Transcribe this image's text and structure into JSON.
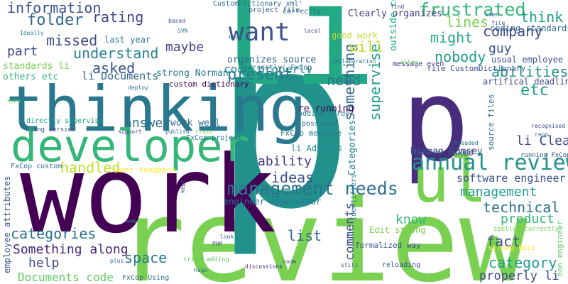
{
  "words": [
    {
      "text": "review",
      "color": "#7ad151"
    },
    {
      "text": "p",
      "color": "#21918c"
    },
    {
      "text": "li",
      "color": "#22a884"
    },
    {
      "text": "work",
      "color": "#440154"
    },
    {
      "text": "p",
      "color": "#472d7b"
    },
    {
      "text": "thinking",
      "color": "#2a788e"
    },
    {
      "text": "developer",
      "color": "#35b779"
    },
    {
      "text": "ul",
      "color": "#7ad151"
    },
    {
      "text": "want",
      "color": "#3b528b"
    },
    {
      "text": "management needs",
      "color": "#2c728e"
    },
    {
      "text": "annual review",
      "color": "#21918c"
    },
    {
      "text": "frustrated",
      "color": "#35b779"
    },
    {
      "text": "information",
      "color": "#3b528b"
    },
    {
      "text": "folder",
      "color": "#31688e"
    },
    {
      "text": "rating",
      "color": "#414487"
    },
    {
      "text": "present",
      "color": "#2a788e"
    },
    {
      "text": "think",
      "color": "#1f9e89"
    },
    {
      "text": "company",
      "color": "#3e4989"
    },
    {
      "text": "something",
      "color": "#31688e"
    },
    {
      "text": "supervise",
      "color": "#1f9e89"
    },
    {
      "text": "Clearly organizes",
      "color": "#443983"
    },
    {
      "text": "lines",
      "color": "#7ad151"
    },
    {
      "text": "missed",
      "color": "#3e4989"
    },
    {
      "text": "understand",
      "color": "#26828e"
    },
    {
      "text": "part",
      "color": "#3e4989"
    },
    {
      "text": "asked",
      "color": "#3b528b"
    },
    {
      "text": "maybe",
      "color": "#414487"
    },
    {
      "text": "will",
      "color": "#bddf26"
    },
    {
      "text": "might",
      "color": "#22a884"
    },
    {
      "text": "guy",
      "color": "#3b528b"
    },
    {
      "text": "nobody",
      "color": "#1f9e89"
    },
    {
      "text": "abilities",
      "color": "#21918c"
    },
    {
      "text": "etc",
      "color": "#1f9e89"
    },
    {
      "text": "li Clearly",
      "color": "#414487"
    },
    {
      "text": "code properly",
      "color": "#25858e"
    },
    {
      "text": "need",
      "color": "#2a788e"
    },
    {
      "text": "li Documents",
      "color": "#31688e"
    },
    {
      "text": "answer",
      "color": "#2c728e"
    },
    {
      "text": "work well",
      "color": "#31688e"
    },
    {
      "text": "ability",
      "color": "#443983"
    },
    {
      "text": "ideas",
      "color": "#3b528b"
    },
    {
      "text": "handled",
      "color": "#bddf26"
    },
    {
      "text": "list",
      "color": "#31688e"
    },
    {
      "text": "know",
      "color": "#35b779"
    },
    {
      "text": "categories",
      "color": "#2c728e"
    },
    {
      "text": "Something along",
      "color": "#482878"
    },
    {
      "text": "help",
      "color": "#3e4989"
    },
    {
      "text": "space",
      "color": "#2a788e"
    },
    {
      "text": "Documents code",
      "color": "#5ec962"
    },
    {
      "text": "technical",
      "color": "#2c728e"
    },
    {
      "text": "management",
      "color": "#1f9e89"
    },
    {
      "text": "software engineer",
      "color": "#3b528b"
    },
    {
      "text": "product",
      "color": "#35b779"
    },
    {
      "text": "fact",
      "color": "#3b528b"
    },
    {
      "text": "category",
      "color": "#1f9e89"
    },
    {
      "text": "properly li",
      "color": "#3e4989"
    },
    {
      "text": "Categories",
      "color": "#25858e"
    },
    {
      "text": "comments",
      "color": "#3b528b"
    },
    {
      "text": "outside consultant",
      "color": "#22a884"
    },
    {
      "text": "Norman Ramsey",
      "color": "#3b528b"
    },
    {
      "text": "last year",
      "color": "#2a788e"
    },
    {
      "text": "coding standards",
      "color": "#31688e"
    },
    {
      "text": "usual employee",
      "color": "#3b528b"
    },
    {
      "text": "artifical deadlines",
      "color": "#3e4989"
    },
    {
      "text": "strong Norman",
      "color": "#2a788e"
    },
    {
      "text": "custom dictionary",
      "color": "#440154"
    },
    {
      "text": "organizes source",
      "color": "#31688e"
    },
    {
      "text": "correctly' FxCop",
      "color": "#31688e"
    },
    {
      "text": "good work",
      "color": "#bddf26"
    },
    {
      "text": "message even",
      "color": "#443983"
    },
    {
      "text": "file CustomDictionary",
      "color": "#3b528b"
    },
    {
      "text": "CustomDictionary xml'",
      "color": "#2c728e"
    },
    {
      "text": "project file",
      "color": "#3b528b"
    },
    {
      "text": "correctly",
      "color": "#2c728e"
    },
    {
      "text": "standards li",
      "color": "#7ad151"
    },
    {
      "text": "others etc",
      "color": "#35b779"
    },
    {
      "text": "Ideally",
      "color": "#26828e"
    },
    {
      "text": "re running",
      "color": "#440154"
    },
    {
      "text": "adding words",
      "color": "#2a788e"
    },
    {
      "text": "possible",
      "color": "#2c728e"
    },
    {
      "text": "FxCop message",
      "color": "#2a788e"
    },
    {
      "text": "li Adheres",
      "color": "#21918c"
    },
    {
      "text": "Ramsey asked",
      "color": "#3e4989"
    },
    {
      "text": "FxCop project",
      "color": "#2a788e"
    },
    {
      "text": "FxCop custom",
      "color": "#2c728e"
    },
    {
      "text": "directly supervise",
      "color": "#1f9e89"
    },
    {
      "text": "Using version",
      "color": "#3b528b"
    },
    {
      "text": "want feedback",
      "color": "#fde725"
    },
    {
      "text": "engineer supervisor",
      "color": "#2c728e"
    },
    {
      "text": "Edit strong",
      "color": "#7ad151"
    },
    {
      "text": "formalized way",
      "color": "#3b528b"
    },
    {
      "text": "employee attributes",
      "color": "#3b528b"
    },
    {
      "text": "strong Edit",
      "color": "#fde725"
    },
    {
      "text": "spelled correctly'",
      "color": "#7ad151"
    },
    {
      "text": "non engineer",
      "color": "#5ec962"
    },
    {
      "text": "running FxCop",
      "color": "#3b528b"
    },
    {
      "text": "source files",
      "color": "#31688e"
    },
    {
      "text": "recognised",
      "color": "#3e4989"
    },
    {
      "text": "tried adding",
      "color": "#5ec962"
    },
    {
      "text": "reloading",
      "color": "#3b528b"
    },
    {
      "text": "FxCop Using",
      "color": "#2c728e"
    },
    {
      "text": "Identifiers",
      "color": "#2a788e"
    },
    {
      "text": "discussions",
      "color": "#482878"
    },
    {
      "text": "collaboration",
      "color": "#2c728e"
    },
    {
      "text": "threaded",
      "color": "#2c728e"
    },
    {
      "text": "deploy",
      "color": "#2c728e"
    },
    {
      "text": "apps",
      "color": "#5ec962"
    },
    {
      "text": "SVN",
      "color": "#2c728e"
    },
    {
      "text": "host",
      "color": "#2c728e"
    },
    {
      "text": "local",
      "color": "#3e4989"
    },
    {
      "text": "allow",
      "color": "#5ec962"
    },
    {
      "text": "based",
      "color": "#3e4989"
    },
    {
      "text": "find",
      "color": "#3e4989"
    },
    {
      "text": "seem",
      "color": "#2c728e"
    },
    {
      "text": "file",
      "color": "#3b528b"
    },
    {
      "text": "repo",
      "color": "#2c728e"
    },
    {
      "text": "support",
      "color": "#3e4989"
    },
    {
      "text": "publish",
      "color": "#2c728e"
    },
    {
      "text": "class",
      "color": "#7ad151"
    },
    {
      "text": "web",
      "color": "#2a788e"
    },
    {
      "text": "PHP",
      "color": "#3e4989"
    },
    {
      "text": "look",
      "color": "#3b528b"
    },
    {
      "text": "huge",
      "color": "#2c728e"
    },
    {
      "text": "kept",
      "color": "#3e4989"
    },
    {
      "text": "plus",
      "color": "#2c728e"
    },
    {
      "text": "code",
      "color": "#3e4989"
    },
    {
      "text": "still",
      "color": "#3b528b"
    }
  ]
}
